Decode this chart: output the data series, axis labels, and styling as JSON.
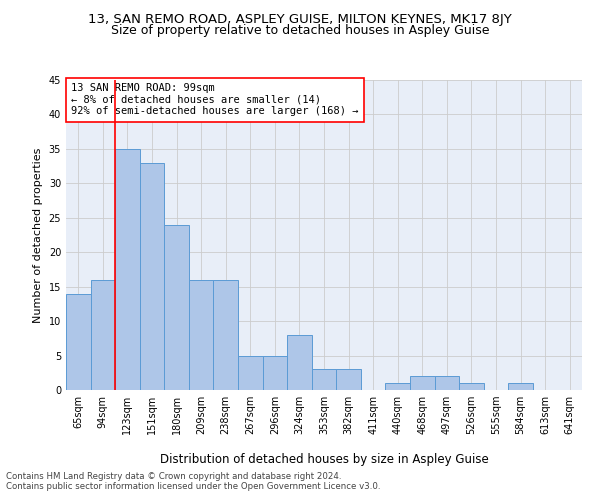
{
  "title1": "13, SAN REMO ROAD, ASPLEY GUISE, MILTON KEYNES, MK17 8JY",
  "title2": "Size of property relative to detached houses in Aspley Guise",
  "xlabel": "Distribution of detached houses by size in Aspley Guise",
  "ylabel": "Number of detached properties",
  "footnote1": "Contains HM Land Registry data © Crown copyright and database right 2024.",
  "footnote2": "Contains public sector information licensed under the Open Government Licence v3.0.",
  "annotation_line1": "13 SAN REMO ROAD: 99sqm",
  "annotation_line2": "← 8% of detached houses are smaller (14)",
  "annotation_line3": "92% of semi-detached houses are larger (168) →",
  "bar_labels": [
    "65sqm",
    "94sqm",
    "123sqm",
    "151sqm",
    "180sqm",
    "209sqm",
    "238sqm",
    "267sqm",
    "296sqm",
    "324sqm",
    "353sqm",
    "382sqm",
    "411sqm",
    "440sqm",
    "468sqm",
    "497sqm",
    "526sqm",
    "555sqm",
    "584sqm",
    "613sqm",
    "641sqm"
  ],
  "bar_values": [
    14,
    16,
    35,
    33,
    24,
    16,
    16,
    5,
    5,
    8,
    3,
    3,
    0,
    1,
    2,
    2,
    1,
    0,
    1,
    0,
    0
  ],
  "bar_color": "#aec6e8",
  "bar_edge_color": "#5b9bd5",
  "property_line_x": 1.5,
  "ylim": [
    0,
    45
  ],
  "yticks": [
    0,
    5,
    10,
    15,
    20,
    25,
    30,
    35,
    40,
    45
  ],
  "grid_color": "#cccccc",
  "background_color": "#e8eef8",
  "title1_fontsize": 9.5,
  "title2_fontsize": 9,
  "annotation_fontsize": 7.5,
  "xlabel_fontsize": 8.5,
  "ylabel_fontsize": 8,
  "tick_fontsize": 7
}
